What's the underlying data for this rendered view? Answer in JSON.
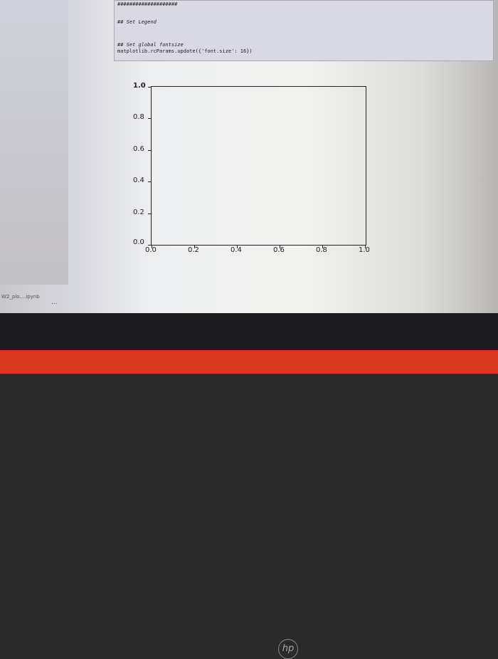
{
  "cell": {
    "line0": "####################",
    "line1": "## Set Legend",
    "line2": "## Set global fontsize",
    "line3": "matplotlib.rcParams.update({'font.size': 16})"
  },
  "chart_data": {
    "type": "line",
    "series": [],
    "xlim": [
      0,
      1
    ],
    "ylim": [
      0,
      1
    ],
    "xticks": [
      "0.0",
      "0.2",
      "0.4",
      "0.6",
      "0.8",
      "1.0"
    ],
    "yticks": [
      "0.0",
      "0.2",
      "0.4",
      "0.6",
      "0.8",
      "1.0"
    ],
    "grid": false
  },
  "footer": {
    "filename": "W2_plo....ipynb",
    "more": "..."
  },
  "brand": {
    "logo": "hp"
  }
}
